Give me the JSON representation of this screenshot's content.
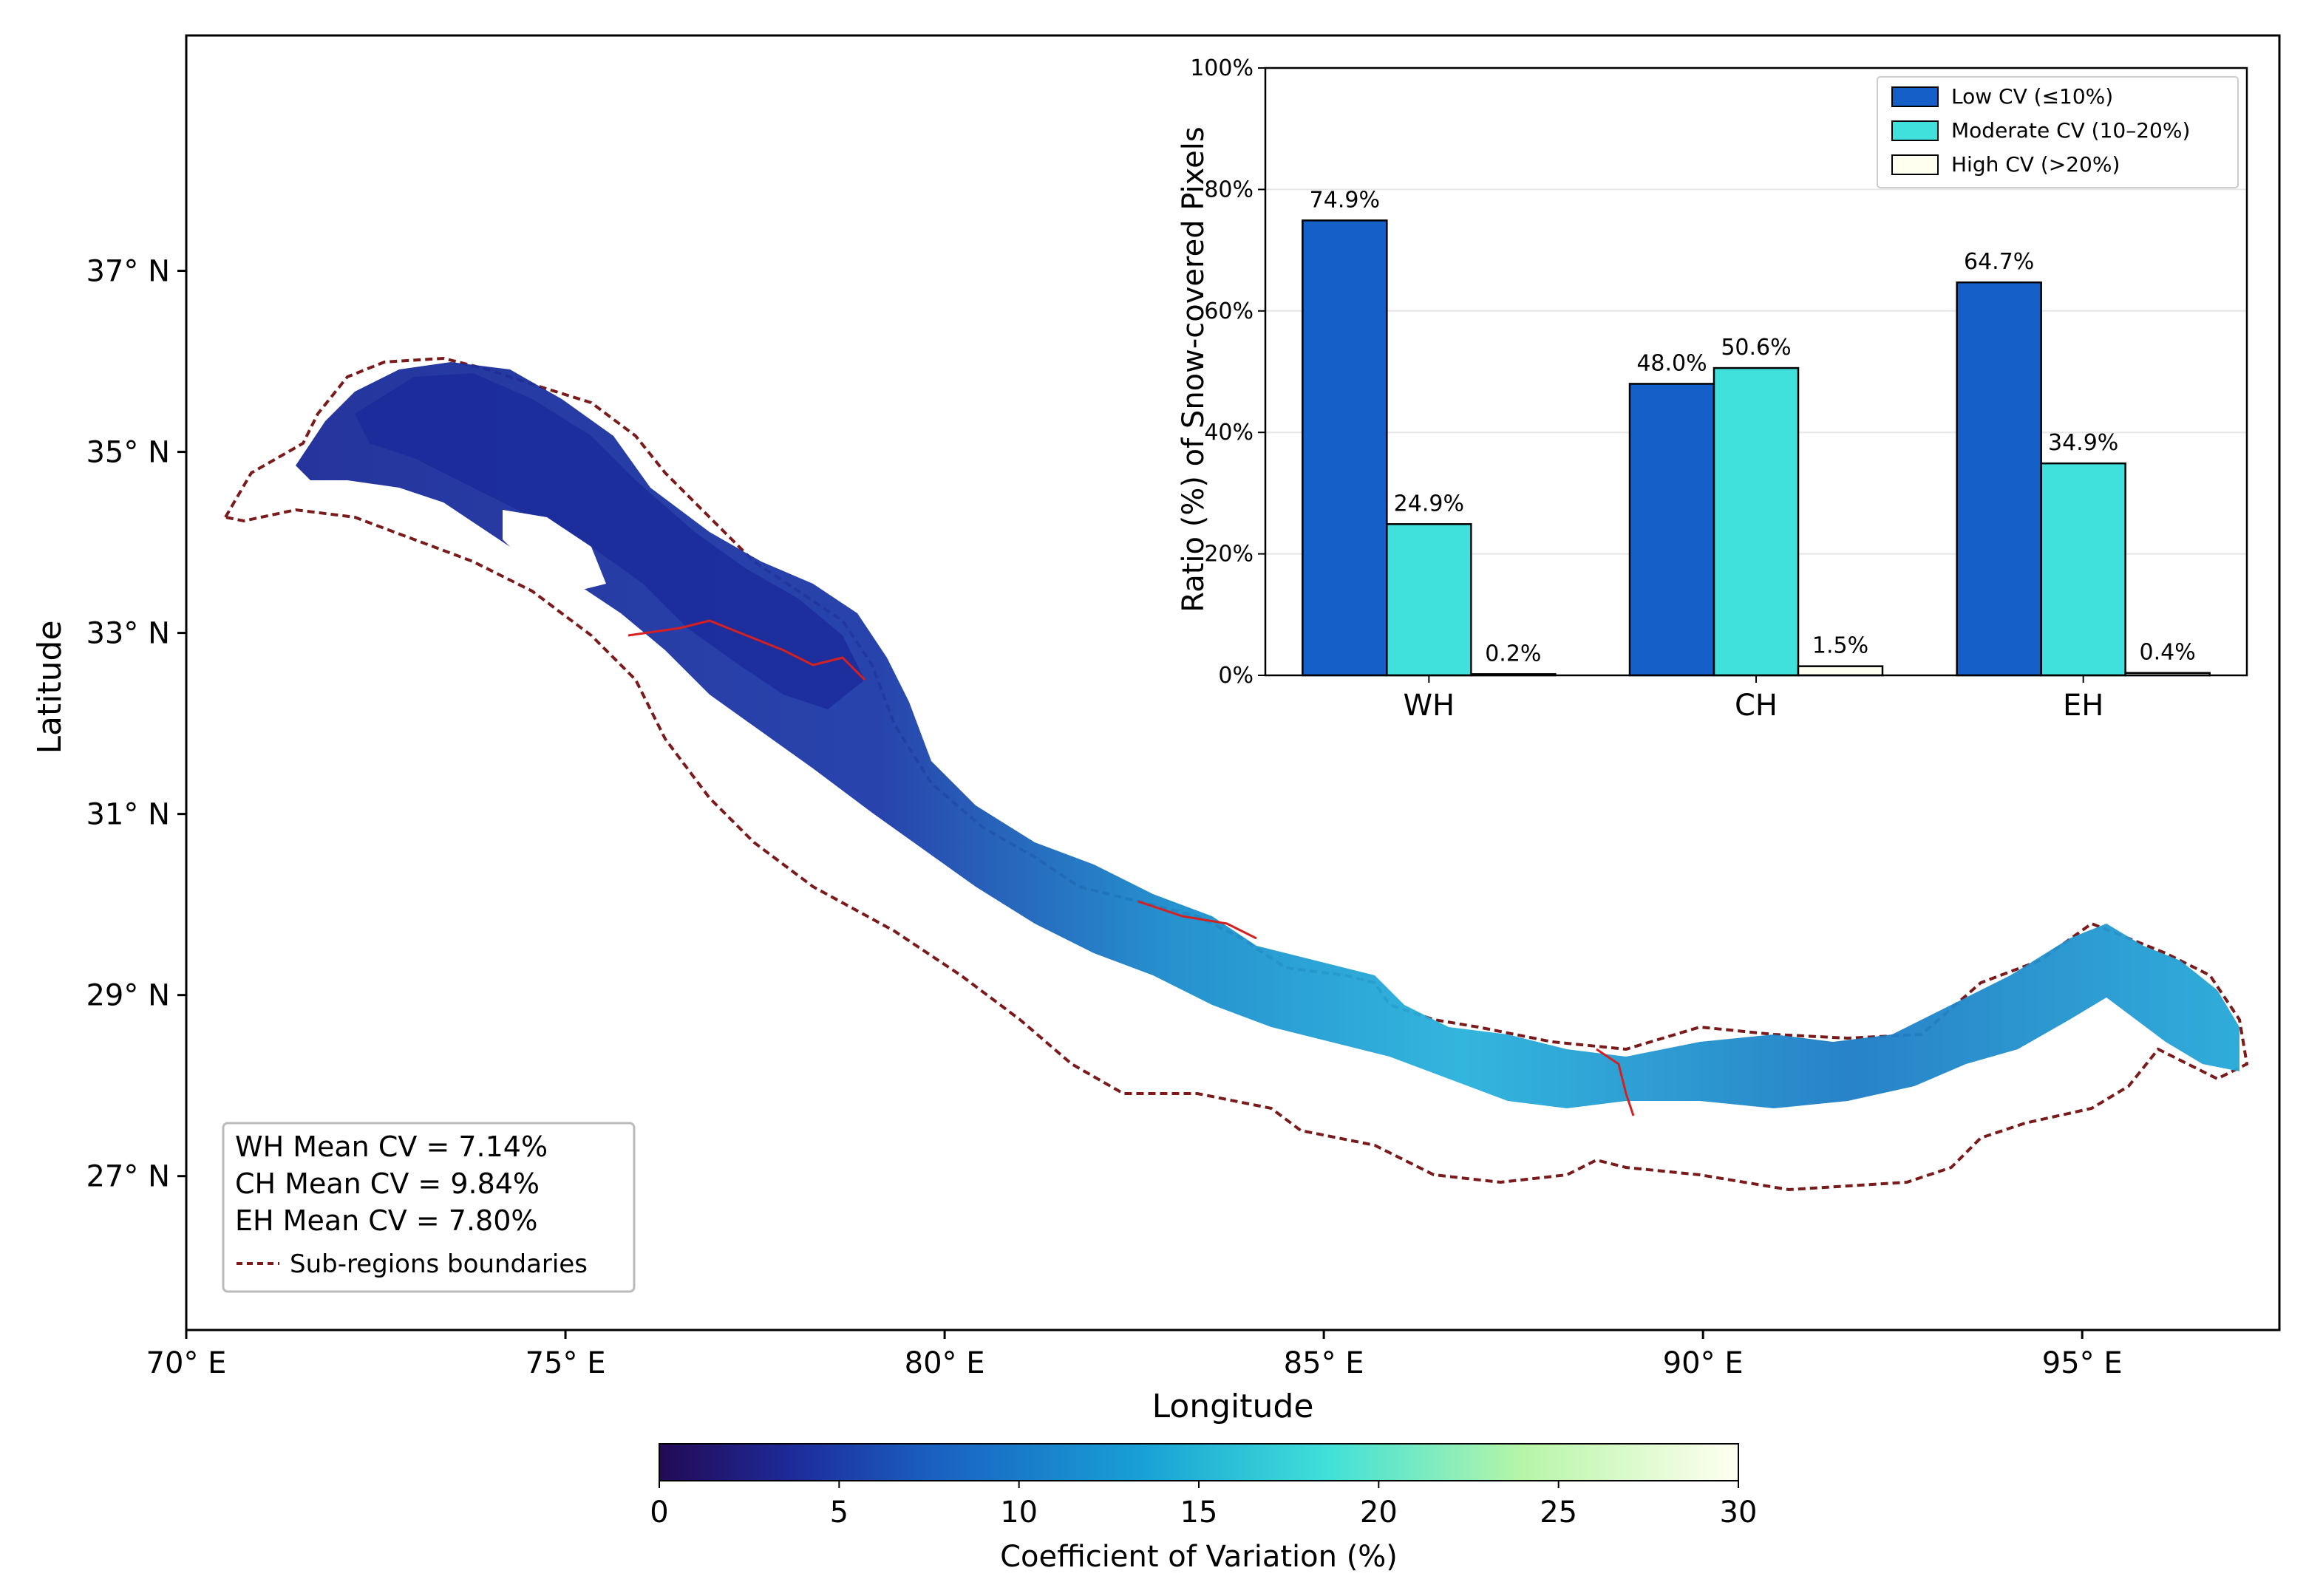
{
  "map": {
    "xlabel": "Longitude",
    "ylabel": "Latitude",
    "lon_ticks": [
      {
        "value": 70,
        "label": "70° E"
      },
      {
        "value": 75,
        "label": "75° E"
      },
      {
        "value": 80,
        "label": "80° E"
      },
      {
        "value": 85,
        "label": "85° E"
      },
      {
        "value": 90,
        "label": "90° E"
      },
      {
        "value": 95,
        "label": "95° E"
      }
    ],
    "lat_ticks": [
      {
        "value": 37,
        "label": "37° N"
      },
      {
        "value": 35,
        "label": "35° N"
      },
      {
        "value": 33,
        "label": "33° N"
      },
      {
        "value": 31,
        "label": "31° N"
      },
      {
        "value": 29,
        "label": "29° N"
      },
      {
        "value": 27,
        "label": "27° N"
      }
    ],
    "lon_range": [
      70,
      97.6
    ],
    "lat_range": [
      25.3,
      39.6
    ],
    "legend": {
      "lines": [
        "WH Mean CV = 7.14%",
        "CH Mean CV = 9.84%",
        "EH Mean CV = 7.80%"
      ],
      "boundary_label": "Sub-regions boundaries"
    },
    "colors": {
      "boundary": "#7a1a1a",
      "subregion_line": "#d42020",
      "low_cv": "#2238a8",
      "mid_cv": "#22a8d8",
      "high_cv": "#a8f0e0"
    }
  },
  "colorbar": {
    "label": "Coefficient of Variation (%)",
    "ticks": [
      "0",
      "5",
      "10",
      "15",
      "20",
      "25",
      "30"
    ],
    "range": [
      0,
      30
    ]
  },
  "chart_data": {
    "type": "bar",
    "categories": [
      "WH",
      "CH",
      "EH"
    ],
    "series": [
      {
        "name": "Low CV (≤10%)",
        "values": [
          74.9,
          48.0,
          64.7
        ],
        "labels": [
          "74.9%",
          "48.0%",
          "64.7%"
        ],
        "color": "#1560c8"
      },
      {
        "name": "Moderate CV (10–20%)",
        "values": [
          24.9,
          50.6,
          34.9
        ],
        "labels": [
          "24.9%",
          "50.6%",
          "34.9%"
        ],
        "color": "#40e0dc"
      },
      {
        "name": "High CV (>20%)",
        "values": [
          0.2,
          1.5,
          0.4
        ],
        "labels": [
          "0.2%",
          "1.5%",
          "0.4%"
        ],
        "color": "#fffff0"
      }
    ],
    "ylabel": "Ratio (%) of Snow-covered Pixels",
    "ylim": [
      0,
      100
    ],
    "yticks": [
      "0%",
      "20%",
      "40%",
      "60%",
      "80%",
      "100%"
    ],
    "legend_position": "top-right",
    "grid": "horizontal"
  }
}
